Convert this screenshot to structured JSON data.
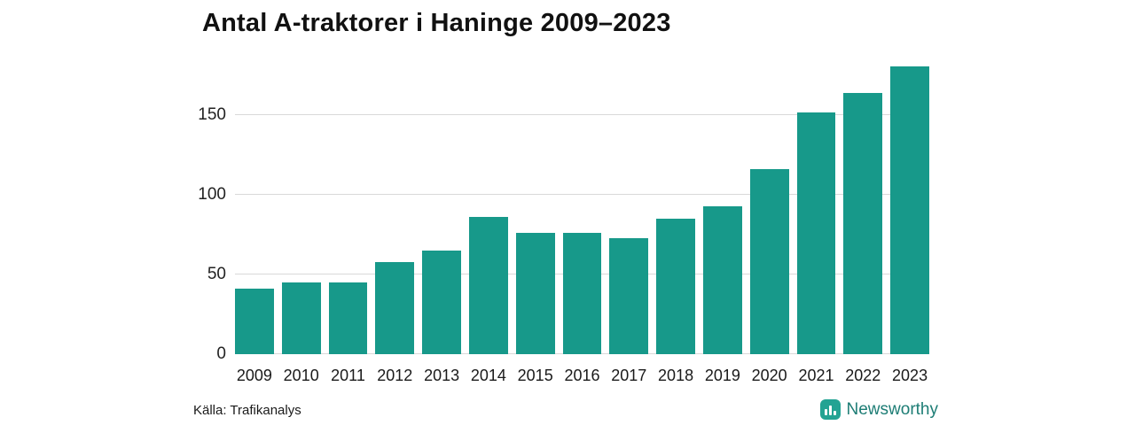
{
  "chart_data": {
    "type": "bar",
    "title": "Antal A-traktorer i Haninge 2009–2023",
    "categories": [
      "2009",
      "2010",
      "2011",
      "2012",
      "2013",
      "2014",
      "2015",
      "2016",
      "2017",
      "2018",
      "2019",
      "2020",
      "2021",
      "2022",
      "2023"
    ],
    "values": [
      41,
      45,
      45,
      58,
      65,
      86,
      76,
      76,
      73,
      85,
      93,
      116,
      152,
      164,
      181
    ],
    "xlabel": "",
    "ylabel": "",
    "yticks": [
      0,
      50,
      100,
      150
    ],
    "ylim": [
      0,
      188
    ],
    "grid": true,
    "legend": "none",
    "bar_color": "#17998a"
  },
  "source_note": "Källa: Trafikanalys",
  "brand": {
    "name": "Newsworthy",
    "icon": "bar-chart-badge",
    "icon_color": "#23a393",
    "text_color": "#1d7d75"
  },
  "colors": {
    "background": "#ffffff",
    "gridline": "#d9d9d9",
    "title_text": "#111111",
    "tick_text": "#222222"
  }
}
